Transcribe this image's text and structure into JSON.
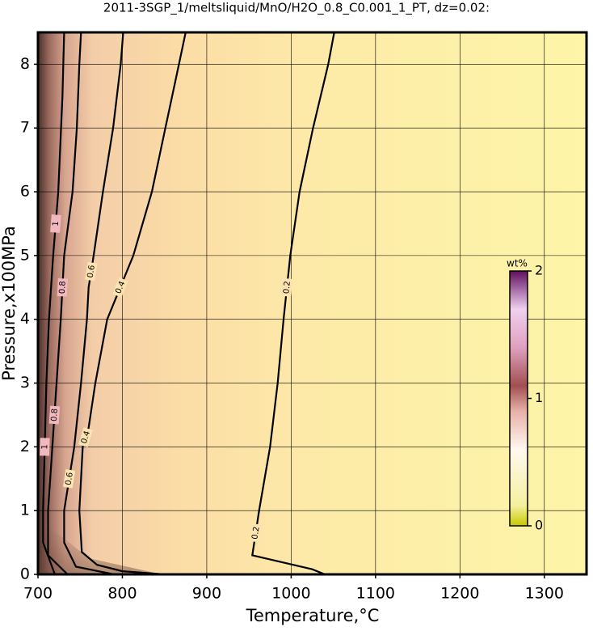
{
  "chart_data": {
    "type": "contour",
    "title": "2011-3SGP_1/meltsliquid/MnO/H2O_0.8_C0.001_1_PT, dz=0.02:",
    "x_label": "Temperature,°C",
    "y_label": "Pressure,x100MPa",
    "xlim": [
      700,
      1350
    ],
    "ylim": [
      0,
      8.5
    ],
    "xticks": [
      700,
      800,
      900,
      1000,
      1100,
      1200,
      1300
    ],
    "yticks": [
      0,
      1,
      2,
      3,
      4,
      5,
      6,
      7,
      8
    ],
    "grid": true,
    "line_color": "#000000",
    "contours": [
      {
        "level": 0.2,
        "x": [
          1040,
          1025,
          954,
          962,
          975,
          984,
          991,
          999,
          1010,
          1026,
          1044,
          1051
        ],
        "y": [
          0,
          0.08,
          0.3,
          1,
          2,
          3,
          4,
          5,
          6,
          7,
          8,
          8.5
        ]
      },
      {
        "level": 0.4,
        "x": [
          850,
          800,
          770,
          752,
          749,
          753,
          760,
          768,
          782,
          813,
          835,
          851,
          867,
          875
        ],
        "y": [
          0,
          0.05,
          0.15,
          0.35,
          1,
          2,
          2.3,
          3,
          4,
          5,
          6,
          7,
          8,
          8.5
        ]
      },
      {
        "level": 0.6,
        "x": [
          790,
          745,
          731,
          731,
          743,
          751,
          758,
          760,
          766,
          777,
          789,
          798,
          801
        ],
        "y": [
          0,
          0.12,
          0.5,
          1,
          2,
          3,
          4,
          4.5,
          5,
          6,
          7,
          8,
          8.5
        ]
      },
      {
        "level": 0.8,
        "x": [
          735,
          712,
          712,
          717,
          722,
          727,
          731,
          741,
          746,
          749,
          751
        ],
        "y": [
          0,
          0.3,
          1,
          2,
          3,
          4,
          5,
          6,
          7,
          8,
          8.5
        ]
      },
      {
        "level": 1,
        "x": [
          720,
          706,
          706,
          710,
          713,
          718,
          724,
          729,
          731
        ],
        "y": [
          0,
          0.5,
          1,
          3,
          4,
          5,
          6,
          7.5,
          8.5
        ]
      }
    ],
    "colorbar": {
      "label": "wt%",
      "lim": [
        0,
        2
      ],
      "ticks": [
        0,
        1,
        2
      ]
    }
  }
}
